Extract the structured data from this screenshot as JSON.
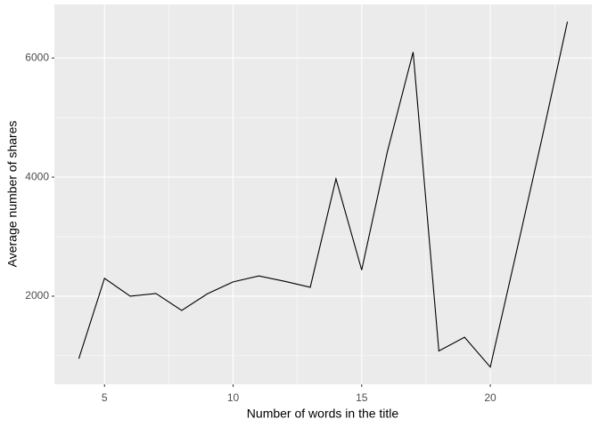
{
  "chart_data": {
    "type": "line",
    "x_label": "Number of words in the title",
    "y_label": "Average number of shares",
    "x": [
      4,
      5,
      6,
      7,
      8,
      9,
      10,
      11,
      12,
      13,
      14,
      15,
      16,
      17,
      18,
      19,
      20,
      21,
      22,
      23
    ],
    "series": [
      {
        "name": "shares",
        "color": "#000000",
        "values": [
          950,
          2300,
          2000,
          2045,
          1760,
          2040,
          2240,
          2340,
          2250,
          2150,
          3970,
          2440,
          4430,
          6100,
          1080,
          1310,
          810,
          2710,
          4630,
          6610
        ]
      }
    ],
    "xlim": [
      3.05,
      23.95
    ],
    "xticks": [
      5,
      10,
      15,
      20
    ],
    "minor_xticks": [
      7.5,
      12.5,
      17.5,
      22.5
    ],
    "ylim": [
      520,
      6900
    ],
    "yticks": [
      2000,
      4000,
      6000
    ],
    "minor_yticks": [
      1000,
      3000,
      5000
    ],
    "grid": true,
    "background": "#ebebeb"
  }
}
